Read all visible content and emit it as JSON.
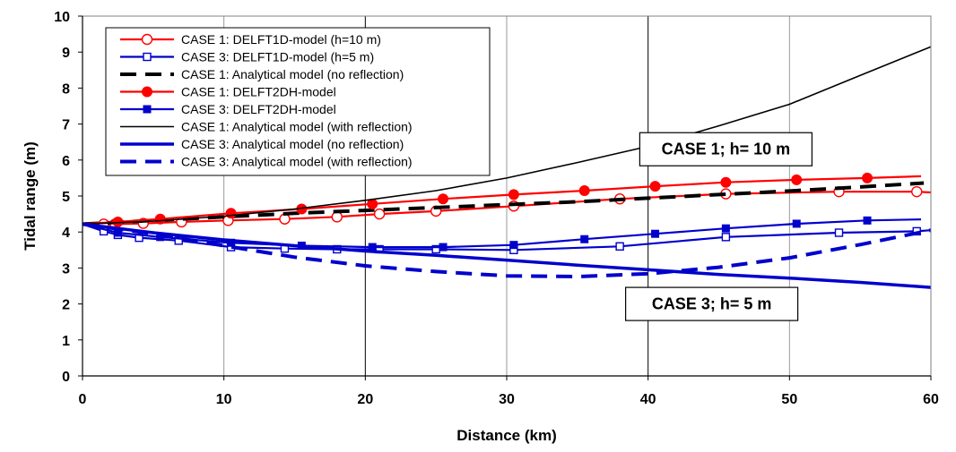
{
  "chart_data": {
    "type": "line",
    "title": "",
    "xlabel": "Distance (km)",
    "ylabel": "Tidal range (m)",
    "xlim": [
      0,
      60
    ],
    "ylim": [
      0,
      10
    ],
    "xticks": [
      0,
      10,
      20,
      30,
      40,
      50,
      60
    ],
    "yticks": [
      0,
      1,
      2,
      3,
      4,
      5,
      6,
      7,
      8,
      9,
      10
    ],
    "grid": "vertical gridlines at x ticks",
    "legend_position": "top-left",
    "series": [
      {
        "name": "CASE 1: DELFT1D-model (h=10 m)",
        "color": "#ff0000",
        "line": "solid",
        "marker": "circle-open",
        "x": [
          0,
          1.5,
          2.3,
          4.3,
          7.0,
          10.3,
          14.3,
          18.0,
          21.0,
          25.0,
          30.5,
          38.0,
          45.5,
          53.5,
          59.0,
          60
        ],
        "y": [
          4.22,
          4.22,
          4.22,
          4.24,
          4.28,
          4.32,
          4.36,
          4.42,
          4.5,
          4.58,
          4.72,
          4.92,
          5.06,
          5.12,
          5.12,
          5.1
        ]
      },
      {
        "name": "CASE 3: DELFT1D-model (h=5 m)",
        "color": "#0000cc",
        "line": "solid",
        "marker": "square-open",
        "x": [
          0,
          1.5,
          2.5,
          4.0,
          6.8,
          10.5,
          14.3,
          18.0,
          21.0,
          25.0,
          30.5,
          38.0,
          45.5,
          53.5,
          59.0,
          60
        ],
        "y": [
          4.22,
          4.02,
          3.92,
          3.84,
          3.76,
          3.58,
          3.54,
          3.52,
          3.52,
          3.52,
          3.5,
          3.6,
          3.86,
          3.98,
          4.02,
          4.05
        ]
      },
      {
        "name": "CASE 1: Analytical model (no reflection)",
        "color": "#000000",
        "line": "dashed-thick",
        "marker": "none",
        "x": [
          0,
          5,
          10,
          15,
          20,
          25,
          30,
          35,
          40,
          45,
          50,
          55,
          59.5
        ],
        "y": [
          4.22,
          4.32,
          4.42,
          4.52,
          4.6,
          4.68,
          4.76,
          4.84,
          4.94,
          5.04,
          5.14,
          5.25,
          5.36
        ]
      },
      {
        "name": "CASE 1: DELFT2DH-model",
        "color": "#ff0000",
        "line": "solid",
        "marker": "circle-filled",
        "x": [
          0,
          2.5,
          5.5,
          10.5,
          15.5,
          20.5,
          25.5,
          30.5,
          35.5,
          40.5,
          45.5,
          50.5,
          55.5,
          59.3
        ],
        "y": [
          4.22,
          4.28,
          4.36,
          4.52,
          4.64,
          4.78,
          4.92,
          5.04,
          5.15,
          5.27,
          5.38,
          5.45,
          5.5,
          5.55
        ]
      },
      {
        "name": "CASE 3: DELFT2DH-model",
        "color": "#0000cc",
        "line": "solid",
        "marker": "square-filled",
        "x": [
          0,
          2.5,
          5.5,
          10.5,
          15.5,
          20.5,
          25.5,
          30.5,
          35.5,
          40.5,
          45.5,
          50.5,
          55.5,
          59.3
        ],
        "y": [
          4.22,
          3.98,
          3.86,
          3.7,
          3.62,
          3.58,
          3.58,
          3.64,
          3.8,
          3.95,
          4.1,
          4.23,
          4.32,
          4.35
        ]
      },
      {
        "name": "CASE 1: Analytical model (with reflection)",
        "color": "#000000",
        "line": "solid-thin",
        "marker": "none",
        "x": [
          0,
          5,
          10,
          15,
          20,
          25,
          30,
          35,
          40,
          45,
          50,
          55,
          60
        ],
        "y": [
          4.22,
          4.3,
          4.44,
          4.64,
          4.88,
          5.15,
          5.5,
          5.93,
          6.38,
          6.95,
          7.55,
          8.35,
          9.15
        ]
      },
      {
        "name": "CASE 3: Analytical model (no reflection)",
        "color": "#0000cc",
        "line": "solid-thick",
        "marker": "none",
        "x": [
          0,
          5,
          10,
          15,
          20,
          25,
          30,
          35,
          40,
          45,
          50,
          55,
          60
        ],
        "y": [
          4.22,
          3.98,
          3.78,
          3.62,
          3.47,
          3.35,
          3.22,
          3.08,
          2.95,
          2.82,
          2.72,
          2.6,
          2.46
        ]
      },
      {
        "name": "CASE 3: Analytical model (with reflection)",
        "color": "#0000cc",
        "line": "dashed-thick",
        "marker": "none",
        "x": [
          0,
          5,
          10,
          15,
          20,
          25,
          30,
          35,
          40,
          45,
          50,
          55,
          60
        ],
        "y": [
          4.22,
          3.95,
          3.62,
          3.3,
          3.06,
          2.9,
          2.78,
          2.76,
          2.84,
          3.02,
          3.28,
          3.65,
          4.05
        ]
      }
    ],
    "annotations": [
      {
        "text": "CASE 1; h= 10 m",
        "x": 45.5,
        "y": 6.3
      },
      {
        "text": "CASE 3; h= 5 m",
        "x": 44.5,
        "y": 2.0
      }
    ]
  }
}
